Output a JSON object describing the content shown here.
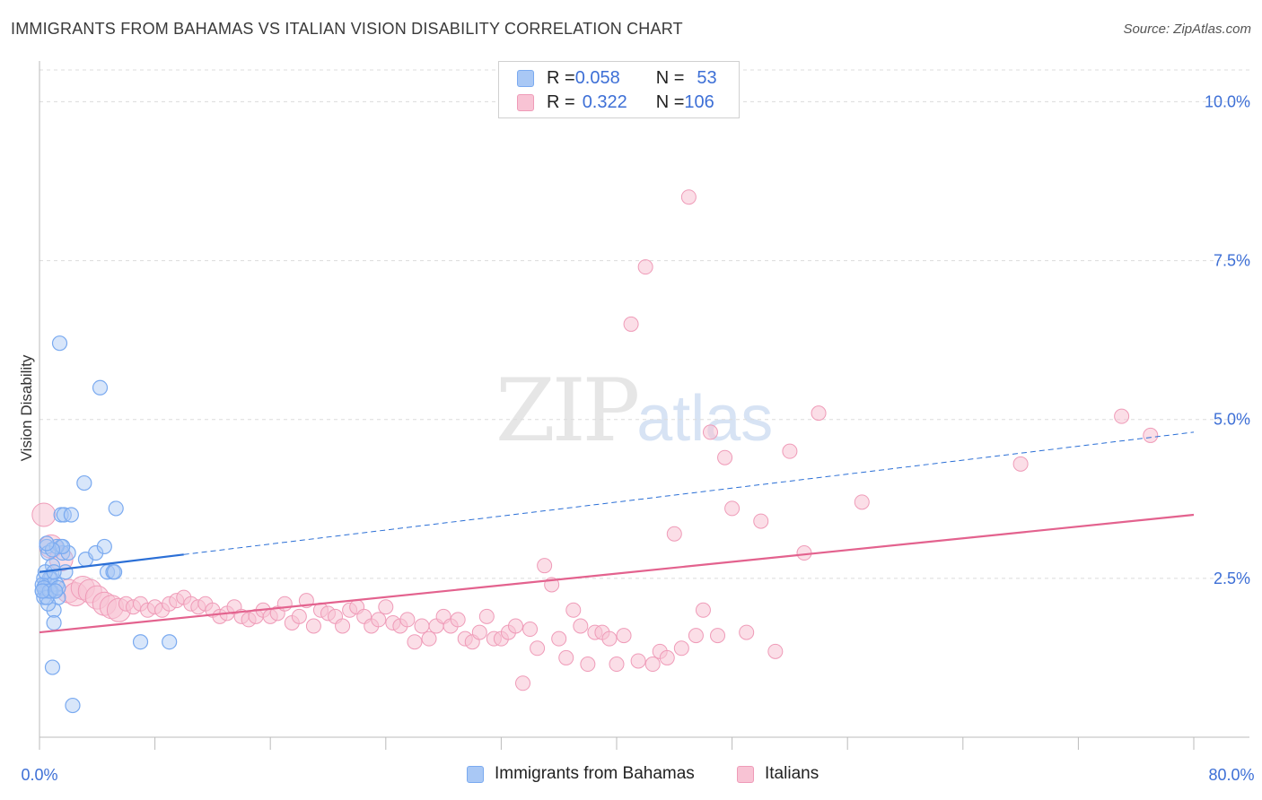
{
  "title": "IMMIGRANTS FROM BAHAMAS VS ITALIAN VISION DISABILITY CORRELATION CHART",
  "source": "Source: ZipAtlas.com",
  "watermark": {
    "zip": "ZIP",
    "atlas": "atlas"
  },
  "legend": {
    "rows": [
      {
        "r_label": "R = ",
        "r_value": "0.058",
        "n_label": "N = ",
        "n_value": "53"
      },
      {
        "r_label": "R = ",
        "r_value": "0.322",
        "n_label": "N = ",
        "n_value": "106"
      }
    ]
  },
  "bottom_legend": [
    "Immigrants from Bahamas",
    "Italians"
  ],
  "colors": {
    "blue": "#7aaaf0",
    "blue_fill": "#a9c8f5",
    "blue_line": "#2b6fd6",
    "pink": "#ef9bb8",
    "pink_fill": "#f8c3d4",
    "pink_line": "#e3628e",
    "tick_text": "#3d6fd6",
    "grid": "#dcdcdc"
  },
  "chart_data": {
    "type": "scatter",
    "title": "IMMIGRANTS FROM BAHAMAS VS ITALIAN VISION DISABILITY CORRELATION CHART",
    "xlabel": "",
    "ylabel": "Vision Disability",
    "xlim": [
      0,
      80
    ],
    "ylim": [
      0,
      10.5
    ],
    "x_tick_labels": [
      "0.0%",
      "80.0%"
    ],
    "y_ticks": [
      2.5,
      5.0,
      7.5,
      10.0
    ],
    "y_tick_labels": [
      "2.5%",
      "5.0%",
      "7.5%",
      "10.0%"
    ],
    "grid": true,
    "legend_position": "top-center",
    "series": [
      {
        "name": "Immigrants from Bahamas",
        "r": 0.058,
        "n": 53,
        "trend": {
          "x": [
            0,
            80
          ],
          "y": [
            2.6,
            4.8
          ],
          "solid_until_x": 10
        },
        "points": [
          [
            0.2,
            2.3
          ],
          [
            0.3,
            2.5
          ],
          [
            0.4,
            2.4
          ],
          [
            0.5,
            2.3
          ],
          [
            0.3,
            2.2
          ],
          [
            0.6,
            2.4
          ],
          [
            0.5,
            3.0
          ],
          [
            0.6,
            2.9
          ],
          [
            0.8,
            2.5
          ],
          [
            0.9,
            2.7
          ],
          [
            1.0,
            2.0
          ],
          [
            1.0,
            1.8
          ],
          [
            1.1,
            2.3
          ],
          [
            1.2,
            2.4
          ],
          [
            1.3,
            2.2
          ],
          [
            1.5,
            3.0
          ],
          [
            1.4,
            6.2
          ],
          [
            1.5,
            3.5
          ],
          [
            1.6,
            2.9
          ],
          [
            1.7,
            3.5
          ],
          [
            1.8,
            2.6
          ],
          [
            2.0,
            2.9
          ],
          [
            2.2,
            3.5
          ],
          [
            2.3,
            0.5
          ],
          [
            0.9,
            1.1
          ],
          [
            3.1,
            4.0
          ],
          [
            3.2,
            2.8
          ],
          [
            3.9,
            2.9
          ],
          [
            4.2,
            5.5
          ],
          [
            4.5,
            3.0
          ],
          [
            4.7,
            2.6
          ],
          [
            5.1,
            2.6
          ],
          [
            5.2,
            2.6
          ],
          [
            5.3,
            3.6
          ],
          [
            7.0,
            1.5
          ],
          [
            9.0,
            1.5
          ],
          [
            0.4,
            2.3
          ],
          [
            0.7,
            2.5
          ],
          [
            1.2,
            3.0
          ],
          [
            0.6,
            2.1
          ],
          [
            0.2,
            2.4
          ],
          [
            0.4,
            2.6
          ],
          [
            0.8,
            2.3
          ],
          [
            1.0,
            2.6
          ],
          [
            0.3,
            2.35
          ],
          [
            0.5,
            2.2
          ],
          [
            0.7,
            2.3
          ],
          [
            1.3,
            2.35
          ],
          [
            1.6,
            3.0
          ],
          [
            0.9,
            2.95
          ],
          [
            0.2,
            2.3
          ],
          [
            0.5,
            3.05
          ],
          [
            1.1,
            2.3
          ]
        ]
      },
      {
        "name": "Italians",
        "r": 0.322,
        "n": 106,
        "trend": {
          "x": [
            0,
            80
          ],
          "y": [
            1.65,
            3.5
          ]
        },
        "points": [
          [
            0.3,
            3.5
          ],
          [
            0.8,
            3.0
          ],
          [
            1.5,
            2.8
          ],
          [
            2.0,
            2.3
          ],
          [
            2.5,
            2.25
          ],
          [
            3.0,
            2.35
          ],
          [
            3.5,
            2.3
          ],
          [
            4.0,
            2.2
          ],
          [
            4.5,
            2.1
          ],
          [
            5.0,
            2.05
          ],
          [
            5.5,
            2.0
          ],
          [
            6.0,
            2.1
          ],
          [
            6.5,
            2.05
          ],
          [
            7.0,
            2.1
          ],
          [
            7.5,
            2.0
          ],
          [
            8.0,
            2.05
          ],
          [
            8.5,
            2.0
          ],
          [
            9.0,
            2.1
          ],
          [
            9.5,
            2.15
          ],
          [
            10.0,
            2.2
          ],
          [
            10.5,
            2.1
          ],
          [
            11.0,
            2.05
          ],
          [
            11.5,
            2.1
          ],
          [
            12.0,
            2.0
          ],
          [
            12.5,
            1.9
          ],
          [
            13.0,
            1.95
          ],
          [
            13.5,
            2.05
          ],
          [
            14.0,
            1.9
          ],
          [
            14.5,
            1.85
          ],
          [
            15.0,
            1.9
          ],
          [
            15.5,
            2.0
          ],
          [
            16.0,
            1.9
          ],
          [
            16.5,
            1.95
          ],
          [
            17.0,
            2.1
          ],
          [
            17.5,
            1.8
          ],
          [
            18.0,
            1.9
          ],
          [
            18.5,
            2.15
          ],
          [
            19.0,
            1.75
          ],
          [
            19.5,
            2.0
          ],
          [
            20.0,
            1.95
          ],
          [
            20.5,
            1.9
          ],
          [
            21.0,
            1.75
          ],
          [
            21.5,
            2.0
          ],
          [
            22.0,
            2.05
          ],
          [
            22.5,
            1.9
          ],
          [
            23.0,
            1.75
          ],
          [
            23.5,
            1.85
          ],
          [
            24.0,
            2.05
          ],
          [
            24.5,
            1.8
          ],
          [
            25.0,
            1.75
          ],
          [
            25.5,
            1.85
          ],
          [
            26.0,
            1.5
          ],
          [
            26.5,
            1.75
          ],
          [
            27.0,
            1.55
          ],
          [
            27.5,
            1.75
          ],
          [
            28.0,
            1.9
          ],
          [
            28.5,
            1.75
          ],
          [
            29.0,
            1.85
          ],
          [
            29.5,
            1.55
          ],
          [
            30.0,
            1.5
          ],
          [
            30.5,
            1.65
          ],
          [
            31.0,
            1.9
          ],
          [
            31.5,
            1.55
          ],
          [
            32.0,
            1.55
          ],
          [
            32.5,
            1.65
          ],
          [
            33.0,
            1.75
          ],
          [
            33.5,
            0.85
          ],
          [
            34.0,
            1.7
          ],
          [
            34.5,
            1.4
          ],
          [
            35.0,
            2.7
          ],
          [
            35.5,
            2.4
          ],
          [
            36.0,
            1.55
          ],
          [
            36.5,
            1.25
          ],
          [
            37.0,
            2.0
          ],
          [
            37.5,
            1.75
          ],
          [
            38.0,
            1.15
          ],
          [
            38.5,
            1.65
          ],
          [
            39.0,
            1.65
          ],
          [
            39.5,
            1.55
          ],
          [
            40.0,
            1.15
          ],
          [
            40.5,
            1.6
          ],
          [
            41.0,
            6.5
          ],
          [
            41.5,
            1.2
          ],
          [
            42.0,
            7.4
          ],
          [
            42.5,
            1.15
          ],
          [
            43.0,
            1.35
          ],
          [
            43.5,
            1.25
          ],
          [
            44.0,
            3.2
          ],
          [
            44.5,
            1.4
          ],
          [
            45.0,
            8.5
          ],
          [
            45.5,
            1.6
          ],
          [
            46.0,
            2.0
          ],
          [
            46.5,
            4.8
          ],
          [
            47.0,
            1.6
          ],
          [
            47.5,
            4.4
          ],
          [
            48.0,
            3.6
          ],
          [
            49.0,
            1.65
          ],
          [
            50.0,
            3.4
          ],
          [
            51.0,
            1.35
          ],
          [
            52.0,
            4.5
          ],
          [
            53.0,
            2.9
          ],
          [
            54.0,
            5.1
          ],
          [
            57.0,
            3.7
          ],
          [
            68.0,
            4.3
          ],
          [
            75.0,
            5.05
          ],
          [
            77.0,
            4.75
          ]
        ]
      }
    ]
  }
}
